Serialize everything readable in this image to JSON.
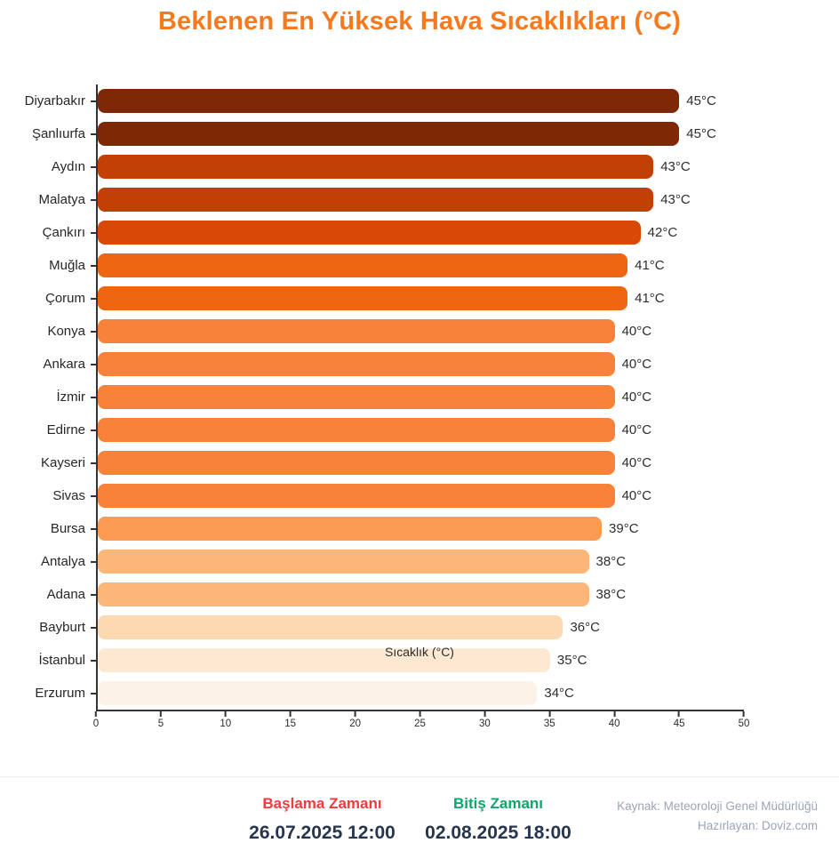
{
  "title": "Beklenen En Yüksek Hava Sıcaklıkları (°C)",
  "chart_data": {
    "type": "bar",
    "orientation": "horizontal",
    "categories": [
      "Diyarbakır",
      "Şanlıurfa",
      "Aydın",
      "Malatya",
      "Çankırı",
      "Muğla",
      "Çorum",
      "Konya",
      "Ankara",
      "İzmir",
      "Edirne",
      "Kayseri",
      "Sivas",
      "Bursa",
      "Antalya",
      "Adana",
      "Bayburt",
      "İstanbul",
      "Erzurum"
    ],
    "values": [
      45,
      45,
      43,
      43,
      42,
      41,
      41,
      40,
      40,
      40,
      40,
      40,
      40,
      39,
      38,
      38,
      36,
      35,
      34
    ],
    "value_labels": [
      "45°C",
      "45°C",
      "43°C",
      "43°C",
      "42°C",
      "41°C",
      "41°C",
      "40°C",
      "40°C",
      "40°C",
      "40°C",
      "40°C",
      "40°C",
      "39°C",
      "38°C",
      "38°C",
      "36°C",
      "35°C",
      "34°C"
    ],
    "bar_colors": [
      "#7f2805",
      "#7f2805",
      "#c23f06",
      "#c23f06",
      "#d84806",
      "#ee6512",
      "#ee6512",
      "#f8823a",
      "#f8823a",
      "#f8823a",
      "#f8823a",
      "#f8823a",
      "#f8823a",
      "#fb9a51",
      "#fcb678",
      "#fcb678",
      "#fcd9b0",
      "#fde8d2",
      "#fdf2e6"
    ],
    "xlabel": "Sıcaklık (°C)",
    "xlim": [
      0,
      50
    ],
    "x_ticks": [
      0,
      5,
      10,
      15,
      20,
      25,
      30,
      35,
      40,
      45,
      50
    ],
    "x_tick_labels": [
      "0",
      "5",
      "10",
      "15",
      "20",
      "25",
      "30",
      "35",
      "40",
      "45",
      "50"
    ],
    "grid": false,
    "legend": "none"
  },
  "footer": {
    "start_label": "Başlama Zamanı",
    "start_value": "26.07.2025 12:00",
    "end_label": "Bitiş Zamanı",
    "end_value": "02.08.2025 18:00",
    "source": "Kaynak: Meteoroloji Genel Müdürlüğü",
    "author": "Hazırlayan: Doviz.com"
  },
  "colors": {
    "title": "#f7791e",
    "axis": "#333333",
    "category_text": "#262626",
    "value_text": "#2d2d2d",
    "start_label": "#ef3b3f",
    "end_label": "#0fa56b",
    "date_text": "#27364f",
    "credits_text": "#9aa5b8",
    "divider": "#ebebf0",
    "background": "#ffffff"
  }
}
